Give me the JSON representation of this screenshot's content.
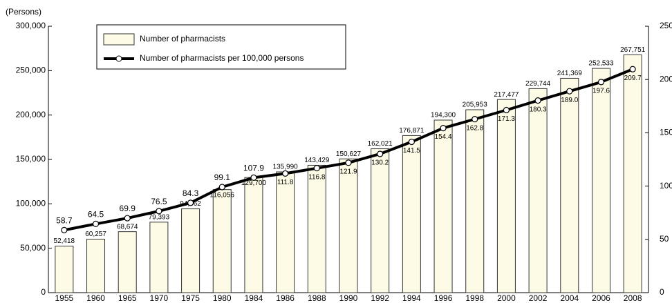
{
  "chart_data": {
    "type": "bar",
    "y_label": "(Persons)",
    "categories": [
      "1955",
      "1960",
      "1965",
      "1970",
      "1975",
      "1980",
      "1984",
      "1986",
      "1988",
      "1990",
      "1992",
      "1994",
      "1996",
      "1998",
      "2000",
      "2002",
      "2004",
      "2006",
      "2008"
    ],
    "series": [
      {
        "name": "Number of pharmacists",
        "type": "bar",
        "color": "#fdfbe6",
        "values": [
          52418,
          60257,
          68674,
          79393,
          94362,
          116056,
          129700,
          135990,
          143429,
          150627,
          162021,
          176871,
          194300,
          205953,
          217477,
          229744,
          241369,
          252533,
          267751
        ],
        "value_labels": [
          "52,418",
          "60,257",
          "68,674",
          "79,393",
          "94,362",
          "116,056",
          "129,700",
          "135,990",
          "143,429",
          "150,627",
          "162,021",
          "176,871",
          "194,300",
          "205,953",
          "217,477",
          "229,744",
          "241,369",
          "252,533",
          "267,751"
        ]
      },
      {
        "name": "Number of pharmacists per 100,000 persons",
        "type": "line",
        "axis": "y2",
        "color": "#000000",
        "values": [
          58.7,
          64.5,
          69.9,
          76.5,
          84.3,
          99.1,
          107.9,
          111.8,
          116.8,
          121.9,
          130.2,
          141.5,
          154.4,
          162.8,
          171.3,
          180.3,
          189.0,
          197.6,
          209.7
        ],
        "value_labels": [
          "58.7",
          "64.5",
          "69.9",
          "76.5",
          "84.3",
          "99.1",
          "107.9",
          "111.8",
          "116.8",
          "121.9",
          "130.2",
          "141.5",
          "154.4",
          "162.8",
          "171.3",
          "180.3",
          "189.0",
          "197.6",
          "209.7"
        ]
      }
    ],
    "ylim": [
      0,
      300000
    ],
    "yticks": [
      0,
      {
        "value": 50000,
        "label": "50,000"
      },
      {
        "value": 100000,
        "label": "100,000"
      },
      {
        "value": 150000,
        "label": "150,000"
      },
      {
        "value": 200000,
        "label": "200,000"
      },
      {
        "value": 250000,
        "label": "250,000"
      },
      {
        "value": 300000,
        "label": "300,000"
      }
    ],
    "y2lim": [
      0,
      250
    ],
    "y2ticks": [
      0,
      50,
      100,
      150,
      200,
      250
    ],
    "grid": false
  }
}
